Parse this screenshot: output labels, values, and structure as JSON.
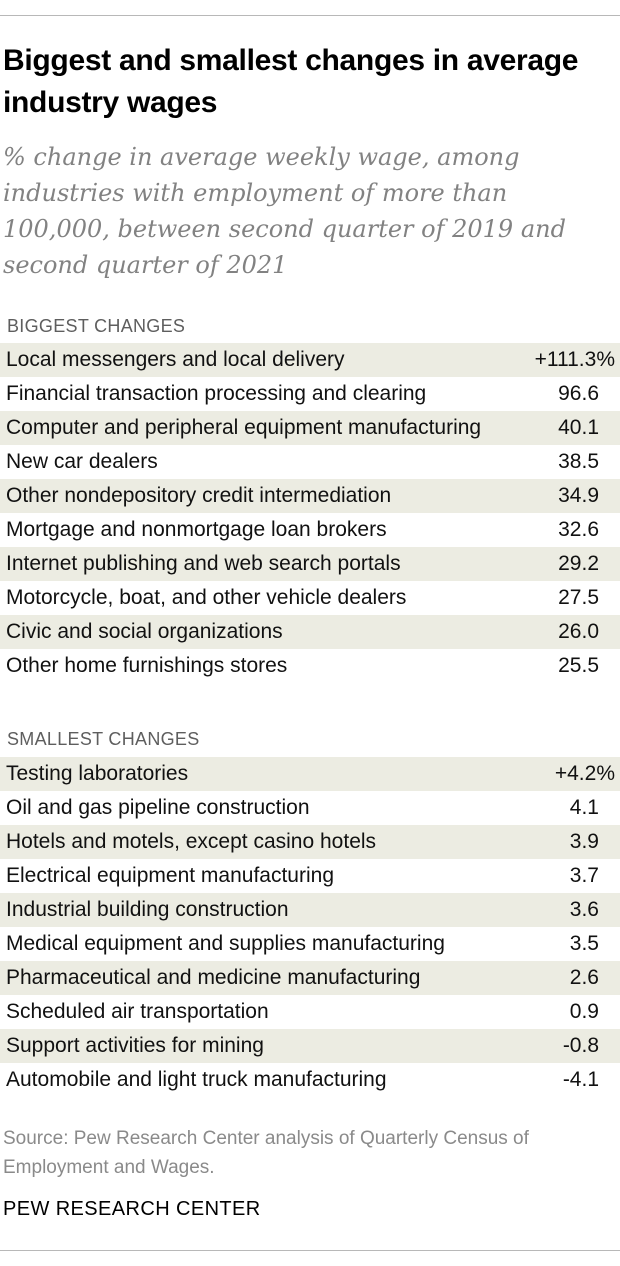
{
  "title": "Biggest and smallest changes in average industry wages",
  "subtitle": "% change in average weekly wage, among industries with employment of more than 100,000, between second quarter of 2019 and second quarter of 2021",
  "source": "Source: Pew Research Center analysis of Quarterly Census of Employment and Wages.",
  "org": "PEW RESEARCH CENTER",
  "chart_data": {
    "type": "table",
    "title": "Biggest and smallest changes in average industry wages",
    "subtitle": "% change in average weekly wage, among industries with employment of more than 100,000, between second quarter of 2019 and second quarter of 2021",
    "sections": [
      {
        "label": "BIGGEST CHANGES",
        "rows": [
          {
            "label": "Local messengers and local delivery",
            "value": 111.3,
            "display": "+111.3%"
          },
          {
            "label": "Financial transaction processing and clearing",
            "value": 96.6,
            "display": "96.6"
          },
          {
            "label": "Computer and peripheral equipment manufacturing",
            "value": 40.1,
            "display": "40.1"
          },
          {
            "label": "New car dealers",
            "value": 38.5,
            "display": "38.5"
          },
          {
            "label": "Other nondepository credit intermediation",
            "value": 34.9,
            "display": "34.9"
          },
          {
            "label": "Mortgage and nonmortgage loan brokers",
            "value": 32.6,
            "display": "32.6"
          },
          {
            "label": "Internet publishing and web search portals",
            "value": 29.2,
            "display": "29.2"
          },
          {
            "label": "Motorcycle, boat, and other vehicle dealers",
            "value": 27.5,
            "display": "27.5"
          },
          {
            "label": "Civic and social organizations",
            "value": 26.0,
            "display": "26.0"
          },
          {
            "label": "Other home furnishings stores",
            "value": 25.5,
            "display": "25.5"
          }
        ]
      },
      {
        "label": "SMALLEST CHANGES",
        "rows": [
          {
            "label": "Testing laboratories",
            "value": 4.2,
            "display": "+4.2%"
          },
          {
            "label": "Oil and gas pipeline construction",
            "value": 4.1,
            "display": "4.1"
          },
          {
            "label": "Hotels and motels, except casino hotels",
            "value": 3.9,
            "display": "3.9"
          },
          {
            "label": "Electrical equipment manufacturing",
            "value": 3.7,
            "display": "3.7"
          },
          {
            "label": "Industrial building construction",
            "value": 3.6,
            "display": "3.6"
          },
          {
            "label": "Medical equipment and supplies manufacturing",
            "value": 3.5,
            "display": "3.5"
          },
          {
            "label": "Pharmaceutical and medicine manufacturing",
            "value": 2.6,
            "display": "2.6"
          },
          {
            "label": "Scheduled air transportation",
            "value": 0.9,
            "display": "0.9"
          },
          {
            "label": "Support activities for mining",
            "value": -0.8,
            "display": "-0.8"
          },
          {
            "label": "Automobile and light truck manufacturing",
            "value": -4.1,
            "display": "-4.1"
          }
        ]
      }
    ],
    "shaded_row_color": "#ecece2"
  }
}
